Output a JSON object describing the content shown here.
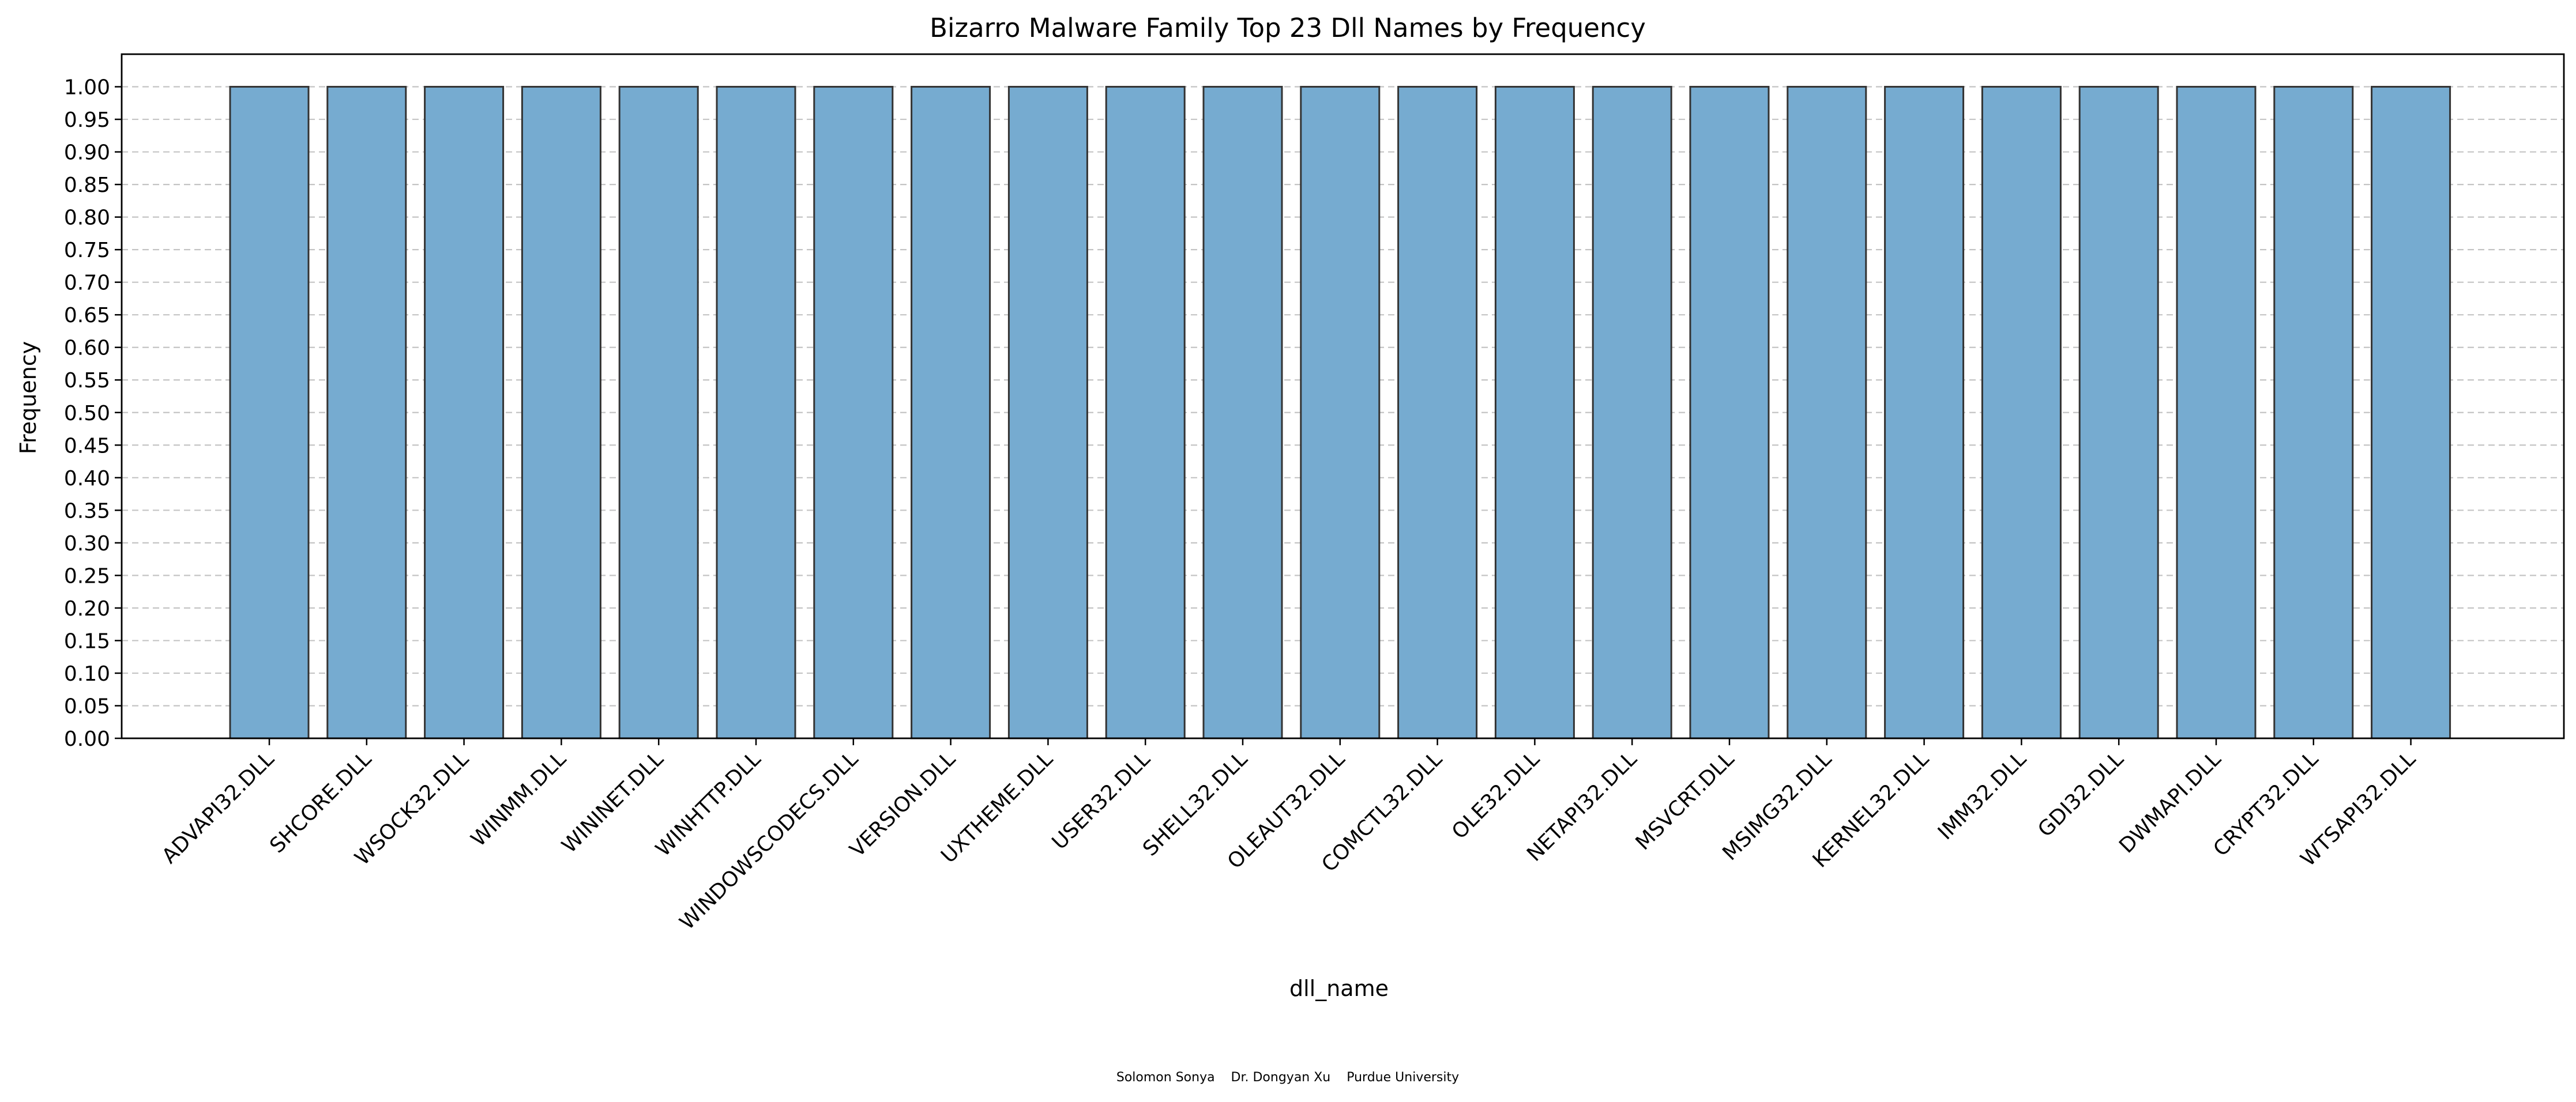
{
  "chart_data": {
    "type": "bar",
    "title": "Bizarro Malware Family Top 23 Dll Names by Frequency",
    "xlabel": "dll_name",
    "ylabel": "Frequency",
    "categories": [
      "ADVAPI32.DLL",
      "SHCORE.DLL",
      "WSOCK32.DLL",
      "WINMM.DLL",
      "WININET.DLL",
      "WINHTTP.DLL",
      "WINDOWSCODECS.DLL",
      "VERSION.DLL",
      "UXTHEME.DLL",
      "USER32.DLL",
      "SHELL32.DLL",
      "OLEAUT32.DLL",
      "COMCTL32.DLL",
      "OLE32.DLL",
      "NETAPI32.DLL",
      "MSVCRT.DLL",
      "MSIMG32.DLL",
      "KERNEL32.DLL",
      "IMM32.DLL",
      "GDI32.DLL",
      "DWMAPI.DLL",
      "CRYPT32.DLL",
      "WTSAPI32.DLL"
    ],
    "values": [
      1,
      1,
      1,
      1,
      1,
      1,
      1,
      1,
      1,
      1,
      1,
      1,
      1,
      1,
      1,
      1,
      1,
      1,
      1,
      1,
      1,
      1,
      1
    ],
    "ylim": [
      0,
      1.05
    ],
    "yticks": [
      "0.00",
      "0.05",
      "0.10",
      "0.15",
      "0.20",
      "0.25",
      "0.30",
      "0.35",
      "0.40",
      "0.45",
      "0.50",
      "0.55",
      "0.60",
      "0.65",
      "0.70",
      "0.75",
      "0.80",
      "0.85",
      "0.90",
      "0.95",
      "1.00"
    ],
    "grid": "y dashed",
    "bar_color": "#76abd0",
    "bar_edge_color": "#333333",
    "credit": "Solomon Sonya    Dr. Dongyan Xu    Purdue University"
  }
}
